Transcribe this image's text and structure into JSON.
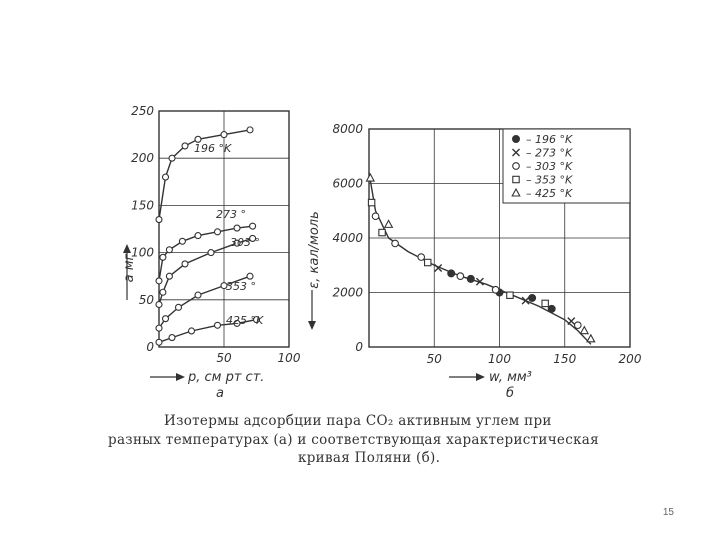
{
  "page_number": "15",
  "caption": [
    "Изотермы адсорбции пара CO₂ активным углем при",
    "разных температурах (а) и соответствующая характеристическая",
    "кривая Поляни (б)."
  ],
  "chart_data": [
    {
      "type": "line",
      "panel_label": "а",
      "xlabel": "p, см рт ст.",
      "ylabel": "a мг",
      "xlim": [
        0,
        100
      ],
      "ylim": [
        0,
        250
      ],
      "x_ticks": [
        "50",
        "100"
      ],
      "y_ticks": [
        "0",
        "50",
        "100",
        "150",
        "200",
        "250"
      ],
      "grid": true,
      "series": [
        {
          "name": "196 °K",
          "x": [
            0,
            5,
            10,
            20,
            30,
            50,
            70
          ],
          "y": [
            135,
            180,
            200,
            213,
            220,
            225,
            230
          ]
        },
        {
          "name": "273 °",
          "x": [
            0,
            3,
            8,
            18,
            30,
            45,
            60,
            72
          ],
          "y": [
            70,
            95,
            103,
            112,
            118,
            122,
            126,
            128
          ]
        },
        {
          "name": "303 °",
          "x": [
            0,
            3,
            8,
            20,
            40,
            60,
            72
          ],
          "y": [
            45,
            58,
            75,
            88,
            100,
            110,
            115
          ]
        },
        {
          "name": "353 °",
          "x": [
            0,
            5,
            15,
            30,
            50,
            70
          ],
          "y": [
            20,
            30,
            42,
            55,
            65,
            75
          ]
        },
        {
          "name": "425 °K",
          "x": [
            0,
            10,
            25,
            45,
            60,
            75
          ],
          "y": [
            5,
            10,
            17,
            23,
            25,
            29
          ]
        }
      ]
    },
    {
      "type": "scatter",
      "panel_label": "б",
      "xlabel": "w, мм³",
      "ylabel": "ε, кал/моль",
      "xlim": [
        0,
        200
      ],
      "ylim": [
        0,
        8000
      ],
      "x_ticks": [
        "0",
        "50",
        "100",
        "150",
        "200"
      ],
      "y_ticks": [
        "0",
        "2000",
        "4000",
        "6000",
        "8000"
      ],
      "grid": true,
      "legend_position": "top-right",
      "legend": [
        "– 196 °K",
        "– 273 °K",
        "– 303 °K",
        "– 353 °K",
        "– 425 °K"
      ],
      "curve": {
        "x": [
          0,
          5,
          15,
          30,
          50,
          70,
          90,
          110,
          130,
          150,
          160,
          170
        ],
        "y": [
          6400,
          5000,
          4000,
          3500,
          3000,
          2600,
          2300,
          1900,
          1500,
          1000,
          600,
          100
        ]
      },
      "points": [
        {
          "series": "196 °K",
          "x": [
            63,
            78,
            100,
            125,
            140
          ],
          "y": [
            2700,
            2500,
            2000,
            1800,
            1400
          ]
        },
        {
          "series": "273 °K",
          "x": [
            53,
            85,
            120,
            155
          ],
          "y": [
            2900,
            2400,
            1700,
            950
          ]
        },
        {
          "series": "303 °K",
          "x": [
            5,
            20,
            40,
            70,
            97,
            160
          ],
          "y": [
            4800,
            3800,
            3300,
            2600,
            2100,
            800
          ]
        },
        {
          "series": "353 °K",
          "x": [
            2,
            10,
            45,
            108,
            135
          ],
          "y": [
            5300,
            4200,
            3100,
            1900,
            1600
          ]
        },
        {
          "series": "425 °K",
          "x": [
            1,
            15,
            165,
            170
          ],
          "y": [
            6200,
            4500,
            600,
            300
          ]
        }
      ]
    }
  ]
}
